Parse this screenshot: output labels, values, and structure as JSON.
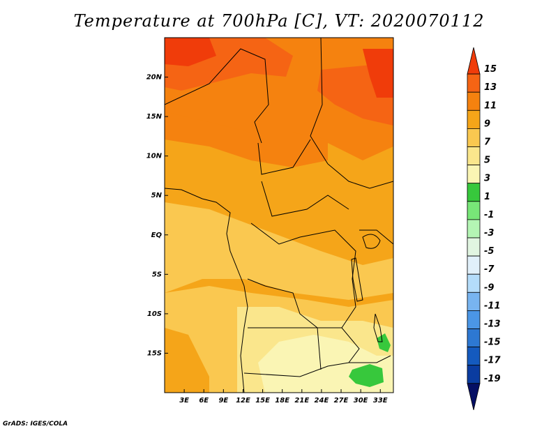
{
  "title": "Temperature at 700hPa [C], VT: 2020070112",
  "credit": "GrADS: IGES/COLA",
  "map": {
    "lon_range": [
      0,
      35
    ],
    "lat_range": [
      -20,
      25
    ],
    "x_ticks": [
      {
        "lon": 3,
        "label": "3E"
      },
      {
        "lon": 6,
        "label": "6E"
      },
      {
        "lon": 9,
        "label": "9E"
      },
      {
        "lon": 12,
        "label": "12E"
      },
      {
        "lon": 15,
        "label": "15E"
      },
      {
        "lon": 18,
        "label": "18E"
      },
      {
        "lon": 21,
        "label": "21E"
      },
      {
        "lon": 24,
        "label": "24E"
      },
      {
        "lon": 27,
        "label": "27E"
      },
      {
        "lon": 30,
        "label": "30E"
      },
      {
        "lon": 33,
        "label": "33E"
      }
    ],
    "y_ticks": [
      {
        "lat": 20,
        "label": "20N"
      },
      {
        "lat": 15,
        "label": "15N"
      },
      {
        "lat": 10,
        "label": "10N"
      },
      {
        "lat": 5,
        "label": "5N"
      },
      {
        "lat": 0,
        "label": "EQ"
      },
      {
        "lat": -5,
        "label": "5S"
      },
      {
        "lat": -10,
        "label": "10S"
      },
      {
        "lat": -15,
        "label": "15S"
      }
    ]
  },
  "colorbar": {
    "levels": [
      "15",
      "13",
      "11",
      "9",
      "7",
      "5",
      "3",
      "1",
      "-1",
      "-3",
      "-5",
      "-7",
      "-9",
      "-11",
      "-13",
      "-15",
      "-17",
      "-19"
    ],
    "colors": [
      "#f03c0a",
      "#f56414",
      "#f5820f",
      "#f5a519",
      "#fac850",
      "#fae68c",
      "#faf5b4",
      "#37c83c",
      "#78e678",
      "#b4f5b4",
      "#e1f5e1",
      "#e1f0fa",
      "#b4dcfa",
      "#78b4f0",
      "#4b96e6",
      "#2d78d2",
      "#145abe",
      "#0a3ca0",
      "#050f64"
    ]
  }
}
